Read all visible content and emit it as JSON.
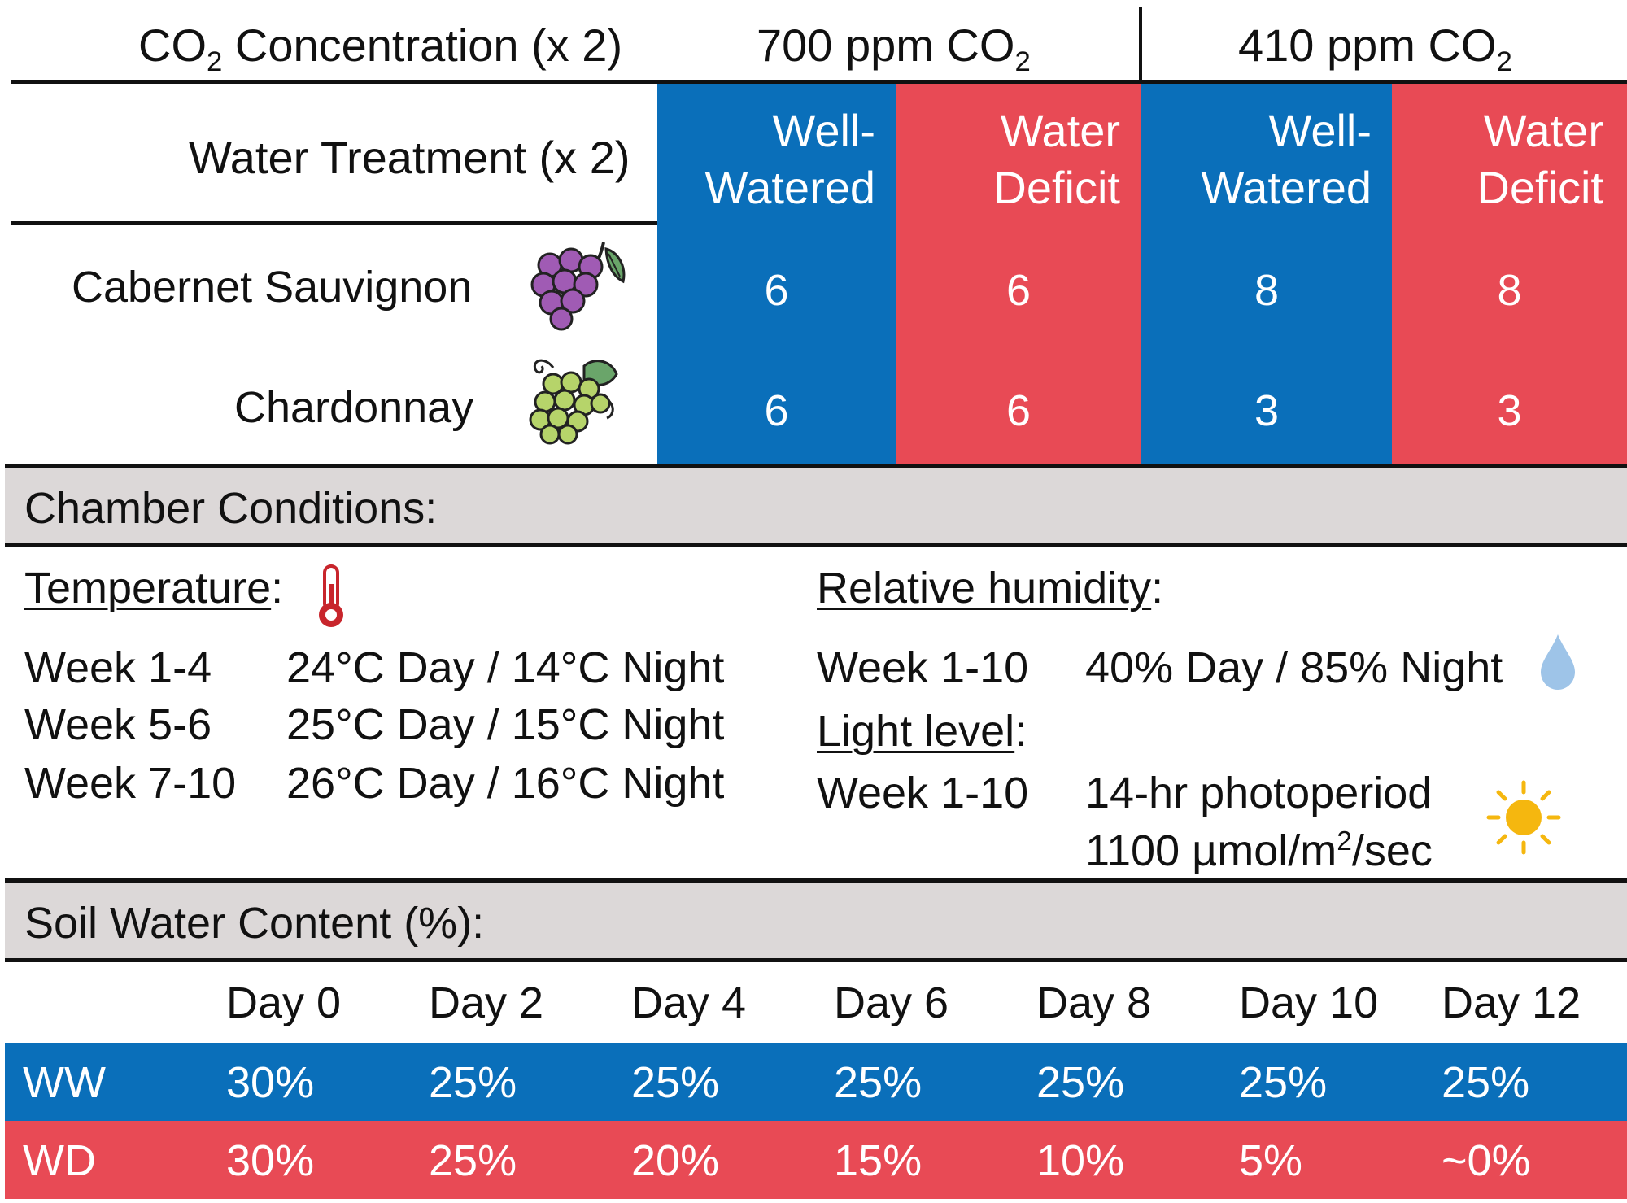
{
  "design_table": {
    "co2_header": {
      "label_main": "CO",
      "label_sub": "2",
      "label_rest": " Concentration (x 2)",
      "level_700_main": "700 ppm CO",
      "level_700_sub": "2",
      "level_410_main": "410 ppm CO",
      "level_410_sub": "2"
    },
    "water_header": {
      "label": "Water Treatment (x 2)",
      "ww_line1": "Well-",
      "ww_line2": "Watered",
      "wd_line1": "Water",
      "wd_line2": "Deficit"
    },
    "varieties": [
      {
        "name": "Cabernet Sauvignon",
        "icon": "purple-grapes-icon",
        "counts": [
          "6",
          "6",
          "8",
          "8"
        ]
      },
      {
        "name": "Chardonnay",
        "icon": "green-grapes-icon",
        "counts": [
          "6",
          "6",
          "3",
          "3"
        ]
      }
    ]
  },
  "chamber": {
    "title": "Chamber Conditions:",
    "temperature": {
      "label": "Temperature",
      "colon": ":",
      "icon": "thermometer-icon",
      "rows": [
        {
          "week": "Week 1-4",
          "value": "24°C Day / 14°C Night"
        },
        {
          "week": "Week 5-6",
          "value": "25°C Day / 15°C Night"
        },
        {
          "week": "Week 7-10",
          "value": "26°C Day / 16°C Night"
        }
      ]
    },
    "humidity": {
      "label": "Relative humidity",
      "colon": ":",
      "icon": "water-drop-icon",
      "week": "Week 1-10",
      "value": "40% Day / 85% Night"
    },
    "light": {
      "label": "Light level",
      "colon": ":",
      "icon": "sun-icon",
      "week": "Week 1-10",
      "line1": "14-hr photoperiod",
      "line2_main": "1100 µmol/m",
      "line2_sup": "2",
      "line2_rest": "/sec"
    }
  },
  "soil": {
    "title": "Soil Water Content (%):",
    "days": [
      "Day 0",
      "Day 2",
      "Day 4",
      "Day 6",
      "Day 8",
      "Day 10",
      "Day 12"
    ],
    "rows": [
      {
        "label": "WW",
        "values": [
          "30%",
          "25%",
          "25%",
          "25%",
          "25%",
          "25%",
          "25%"
        ]
      },
      {
        "label": "WD",
        "values": [
          "30%",
          "25%",
          "20%",
          "15%",
          "10%",
          "5%",
          "~0%"
        ]
      }
    ]
  },
  "colors": {
    "well_watered": "#0a6fba",
    "water_deficit": "#e84a55",
    "section_band": "#dcd8d8"
  }
}
